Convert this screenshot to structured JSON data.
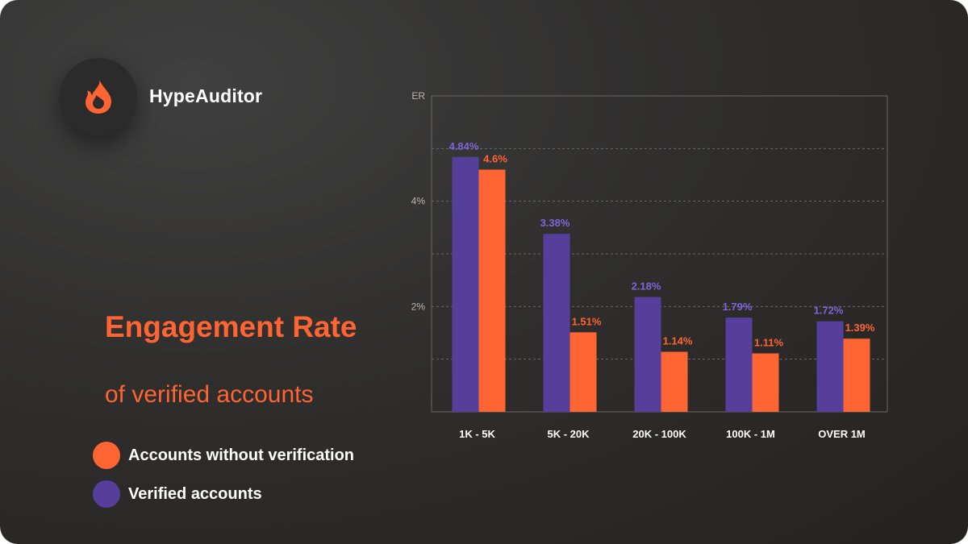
{
  "brand": {
    "name": "HypeAuditor",
    "icon": "flame-icon",
    "icon_color": "#ff6433"
  },
  "heading": {
    "title": "Engagement Rate",
    "subtitle": "of verified accounts"
  },
  "legend": [
    {
      "label": "Accounts without verification",
      "color": "#ff6433"
    },
    {
      "label": "Verified accounts",
      "color": "#553f9a"
    }
  ],
  "colors": {
    "verified": "#553f9a",
    "verified_label": "#7e66d8",
    "unverified": "#ff6433",
    "background": "#2d2c2b"
  },
  "chart_data": {
    "type": "bar",
    "categories": [
      "1K - 5K",
      "5K - 20K",
      "20K - 100K",
      "100K - 1M",
      "OVER 1M"
    ],
    "series": [
      {
        "name": "Verified accounts",
        "values": [
          4.84,
          3.38,
          2.18,
          1.79,
          1.72
        ],
        "labels": [
          "4.84%",
          "3.38%",
          "2.18%",
          "1.79%",
          "1.72%"
        ]
      },
      {
        "name": "Accounts without verification",
        "values": [
          4.6,
          1.51,
          1.14,
          1.11,
          1.39
        ],
        "labels": [
          "4.6%",
          "1.51%",
          "1.14%",
          "1.11%",
          "1.39%"
        ]
      }
    ],
    "ylabel": "ER",
    "ylim": [
      0,
      6
    ],
    "yticks": [
      0,
      1,
      2,
      3,
      4,
      5,
      6
    ],
    "ytick_labels": [
      "",
      "",
      "2%",
      "",
      "4%",
      "",
      "ER"
    ],
    "grid": true,
    "legend": "left"
  }
}
